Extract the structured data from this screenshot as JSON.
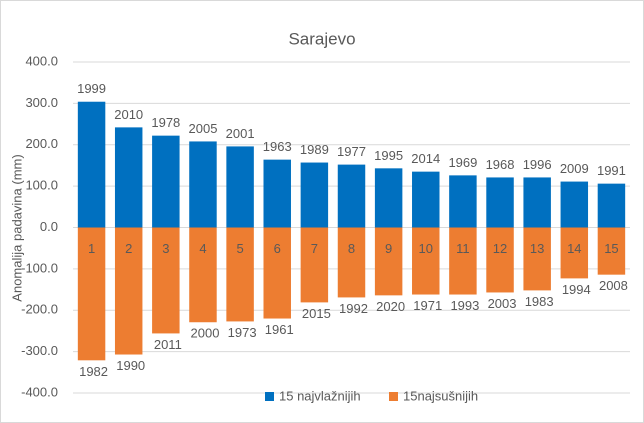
{
  "chart_data": {
    "type": "bar",
    "title": "Sarajevo",
    "y_label": "Anomalija padavina (mm)",
    "categories": [
      "1",
      "2",
      "3",
      "4",
      "5",
      "6",
      "7",
      "8",
      "9",
      "10",
      "11",
      "12",
      "13",
      "14",
      "15"
    ],
    "series": [
      {
        "name": "15 najvlažnijih",
        "color": "#0070c0",
        "values": [
          304,
          242,
          222,
          208,
          196,
          164,
          157,
          152,
          143,
          135,
          126,
          121,
          121,
          111,
          106
        ],
        "labels": [
          "1999",
          "2010",
          "1978",
          "2005",
          "2001",
          "1963",
          "1989",
          "1977",
          "1995",
          "2014",
          "1969",
          "1968",
          "1996",
          "2009",
          "1991"
        ]
      },
      {
        "name": "15najsušnijih",
        "color": "#ed7d31",
        "values": [
          -321,
          -307,
          -256,
          -229,
          -227,
          -220,
          -181,
          -169,
          -164,
          -162,
          -162,
          -157,
          -152,
          -123,
          -114
        ],
        "labels": [
          "1982",
          "1990",
          "2011",
          "2000",
          "1973",
          "1961",
          "2015",
          "1992",
          "2020",
          "1971",
          "1993",
          "2003",
          "1983",
          "1994",
          "2008"
        ]
      }
    ],
    "ylim": [
      -400,
      400
    ],
    "yticks": [
      {
        "value": -400,
        "label": "-400.0"
      },
      {
        "value": -300,
        "label": "-300.0"
      },
      {
        "value": -200,
        "label": "-200.0"
      },
      {
        "value": -100,
        "label": "-100.0"
      },
      {
        "value": 0,
        "label": "0.0"
      },
      {
        "value": 100,
        "label": "100.0"
      },
      {
        "value": 200,
        "label": "200.0"
      },
      {
        "value": 300,
        "label": "300.0"
      },
      {
        "value": 400,
        "label": "400.0"
      }
    ],
    "grid": true,
    "legend": "bottom"
  }
}
